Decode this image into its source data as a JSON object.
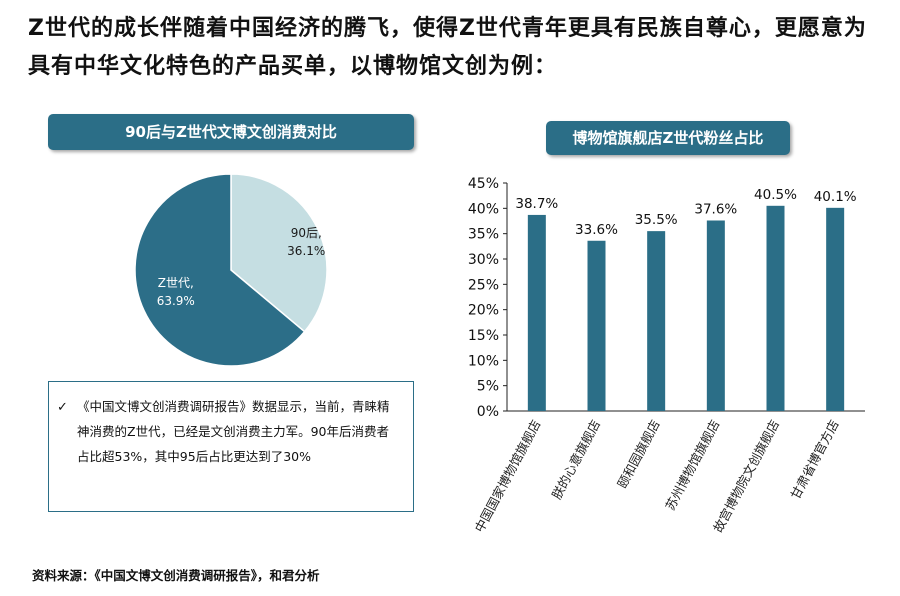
{
  "headline": "Z世代的成长伴随着中国经济的腾飞，使得Z世代青年更具有民族自尊心，更愿意为具有中华文化特色的产品买单，以博物馆文创为例：",
  "colors": {
    "accent": "#2b6e87",
    "pie_light": "#c5dee2",
    "pie_dark": "#2c6e88",
    "bar": "#2b6e87"
  },
  "chart_data": [
    {
      "type": "pie",
      "title": "90后与Z世代文博文创消费对比",
      "slices": [
        {
          "label": "90后",
          "value": 36.1,
          "value_text": "36.1%",
          "color": "#c5dee2"
        },
        {
          "label": "Z世代",
          "value": 63.9,
          "value_text": "63.9%",
          "color": "#2c6e88"
        }
      ]
    },
    {
      "type": "bar",
      "title": "博物馆旗舰店Z世代粉丝占比",
      "categories": [
        "中国国家博物馆旗舰店",
        "朕的心意旗舰店",
        "颐和园旗舰店",
        "苏州博物馆旗舰店",
        "故宫博物院文创旗舰店",
        "甘肃省博官方店"
      ],
      "values": [
        38.7,
        33.6,
        35.5,
        37.6,
        40.5,
        40.1
      ],
      "value_labels": [
        "38.7%",
        "33.6%",
        "35.5%",
        "37.6%",
        "40.5%",
        "40.1%"
      ],
      "ylim": [
        0,
        45
      ],
      "yticks": [
        "0%",
        "5%",
        "10%",
        "15%",
        "20%",
        "25%",
        "30%",
        "35%",
        "40%",
        "45%"
      ],
      "xlabel": "",
      "ylabel": "",
      "grid": false
    }
  ],
  "note": {
    "check": "✓",
    "text": "《中国文博文创消费调研报告》数据显示，当前，青睐精神消费的Z世代，已经是文创消费主力军。90年后消费者占比超53%，其中95后占比更达到了30%"
  },
  "source": "资料来源：《中国文博文创消费调研报告》，和君分析"
}
